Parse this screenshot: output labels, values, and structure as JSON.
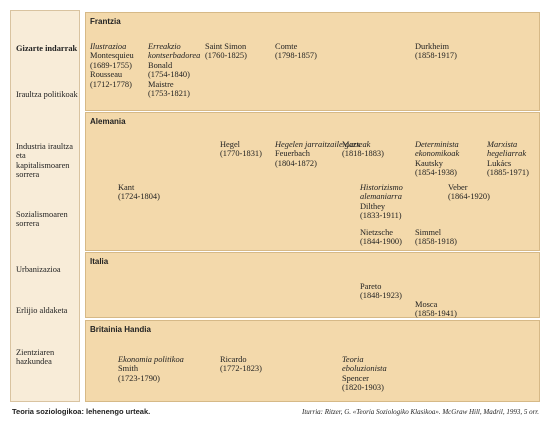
{
  "side_labels": [
    {
      "text": "Gizarte indarrak",
      "bold": true
    },
    {
      "text": "Iraultza politikoak"
    },
    {
      "text": "Industria iraultza eta kapitalismoaren sorrera"
    },
    {
      "text": "Sozialismoaren sorrera"
    },
    {
      "text": "Urbanizazioa"
    },
    {
      "text": "Erlijio aldaketa"
    },
    {
      "text": "Zientziaren hazkundea"
    }
  ],
  "sections": [
    {
      "title": "Frantzia",
      "entries": [
        {
          "italic": [
            "Ilustrazioa"
          ],
          "text": [
            "Montesquieu",
            "(1689-1755)",
            "Rousseau",
            "(1712-1778)"
          ]
        },
        {
          "italic": [
            "Erreakzio",
            "kontserbadorea"
          ],
          "text": [
            "Bonald",
            "(1754-1840)",
            "Maistre",
            "(1753-1821)"
          ]
        },
        {
          "text": [
            "Saint Simon",
            "(1760-1825)"
          ]
        },
        {
          "text": [
            "Comte",
            "(1798-1857)"
          ]
        },
        {
          "text": [
            "Durkheim",
            "(1858-1917)"
          ]
        }
      ]
    },
    {
      "title": "Alemania",
      "entries": [
        {
          "text": [
            "Hegel",
            "(1770-1831)"
          ]
        },
        {
          "italic": [
            "Hegelen jarraitzaile gazteak"
          ],
          "text": [
            "Feuerbach",
            "(1804-1872)"
          ]
        },
        {
          "text": [
            "Marx",
            "(1818-1883)"
          ]
        },
        {
          "italic": [
            "Determinista",
            "ekonomikoak"
          ],
          "text": [
            "Kautsky",
            "(1854-1938)"
          ]
        },
        {
          "italic": [
            "Marxista",
            "hegeliarrak"
          ],
          "text": [
            "Lukács",
            "(1885-1971)"
          ]
        },
        {
          "text": [
            "Kant",
            "(1724-1804)"
          ]
        },
        {
          "italic": [
            "Historizismo",
            "alemaniarra"
          ],
          "text": [
            "Dilthey",
            "(1833-1911)"
          ]
        },
        {
          "text": [
            "Veber",
            "(1864-1920)"
          ]
        },
        {
          "text": [
            "Nietzsche",
            "(1844-1900)"
          ]
        },
        {
          "text": [
            "Simmel",
            "(1858-1918)"
          ]
        }
      ]
    },
    {
      "title": "Italia",
      "entries": [
        {
          "text": [
            "Pareto",
            "(1848-1923)"
          ]
        },
        {
          "text": [
            "Mosca",
            "(1858-1941)"
          ]
        }
      ]
    },
    {
      "title": "Britainia Handia",
      "entries": [
        {
          "italic": [
            "Ekonomia politikoa"
          ],
          "text": [
            "Smith",
            "(1723-1790)"
          ]
        },
        {
          "text": [
            "Ricardo",
            "(1772-1823)"
          ]
        },
        {
          "italic": [
            "Teoria",
            "eboluzionista"
          ],
          "text": [
            "Spencer",
            "(1820-1903)"
          ]
        }
      ]
    }
  ],
  "caption": "Teoria soziologikoa: lehenengo urteak.",
  "source": "Iturria: Ritzer, G. «Teoria Soziologiko Klasikoa». McGraw Hill, Madril, 1993, 5 orr."
}
